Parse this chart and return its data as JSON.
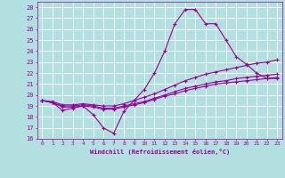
{
  "xlabel": "Windchill (Refroidissement éolien,°C)",
  "background_color": "#b2e0e0",
  "line_color": "#990099",
  "grid_color": "#ffffff",
  "xlim": [
    -0.5,
    23.5
  ],
  "ylim": [
    16,
    28.5
  ],
  "yticks": [
    16,
    17,
    18,
    19,
    20,
    21,
    22,
    23,
    24,
    25,
    26,
    27,
    28
  ],
  "xticks": [
    0,
    1,
    2,
    3,
    4,
    5,
    6,
    7,
    8,
    9,
    10,
    11,
    12,
    13,
    14,
    15,
    16,
    17,
    18,
    19,
    20,
    21,
    22,
    23
  ],
  "series": [
    {
      "x": [
        0,
        1,
        2,
        3,
        4,
        5,
        6,
        7,
        8,
        9,
        10,
        11,
        12,
        13,
        14,
        15,
        16,
        17,
        18,
        19,
        20,
        21,
        22,
        23
      ],
      "y": [
        19.5,
        19.3,
        18.6,
        18.8,
        19.0,
        18.2,
        17.0,
        16.5,
        18.5,
        19.5,
        20.5,
        22.0,
        24.0,
        26.5,
        27.8,
        27.8,
        26.5,
        26.5,
        25.0,
        23.5,
        22.8,
        22.0,
        21.5,
        21.5
      ]
    },
    {
      "x": [
        0,
        1,
        2,
        3,
        4,
        5,
        6,
        7,
        8,
        9,
        10,
        11,
        12,
        13,
        14,
        15,
        16,
        17,
        18,
        19,
        20,
        21,
        22,
        23
      ],
      "y": [
        19.5,
        19.4,
        19.1,
        19.1,
        19.2,
        19.1,
        19.0,
        19.0,
        19.2,
        19.5,
        19.8,
        20.1,
        20.5,
        20.9,
        21.3,
        21.6,
        21.9,
        22.1,
        22.3,
        22.5,
        22.7,
        22.9,
        23.0,
        23.2
      ]
    },
    {
      "x": [
        0,
        1,
        2,
        3,
        4,
        5,
        6,
        7,
        8,
        9,
        10,
        11,
        12,
        13,
        14,
        15,
        16,
        17,
        18,
        19,
        20,
        21,
        22,
        23
      ],
      "y": [
        19.5,
        19.3,
        19.0,
        19.0,
        19.1,
        19.0,
        18.8,
        18.8,
        19.0,
        19.2,
        19.4,
        19.7,
        20.0,
        20.3,
        20.6,
        20.8,
        21.0,
        21.2,
        21.3,
        21.5,
        21.6,
        21.7,
        21.8,
        21.9
      ]
    },
    {
      "x": [
        0,
        1,
        2,
        3,
        4,
        5,
        6,
        7,
        8,
        9,
        10,
        11,
        12,
        13,
        14,
        15,
        16,
        17,
        18,
        19,
        20,
        21,
        22,
        23
      ],
      "y": [
        19.5,
        19.3,
        18.9,
        18.9,
        19.0,
        18.9,
        18.7,
        18.7,
        18.9,
        19.1,
        19.3,
        19.6,
        19.9,
        20.1,
        20.4,
        20.6,
        20.8,
        21.0,
        21.1,
        21.2,
        21.3,
        21.4,
        21.5,
        21.6
      ]
    }
  ]
}
